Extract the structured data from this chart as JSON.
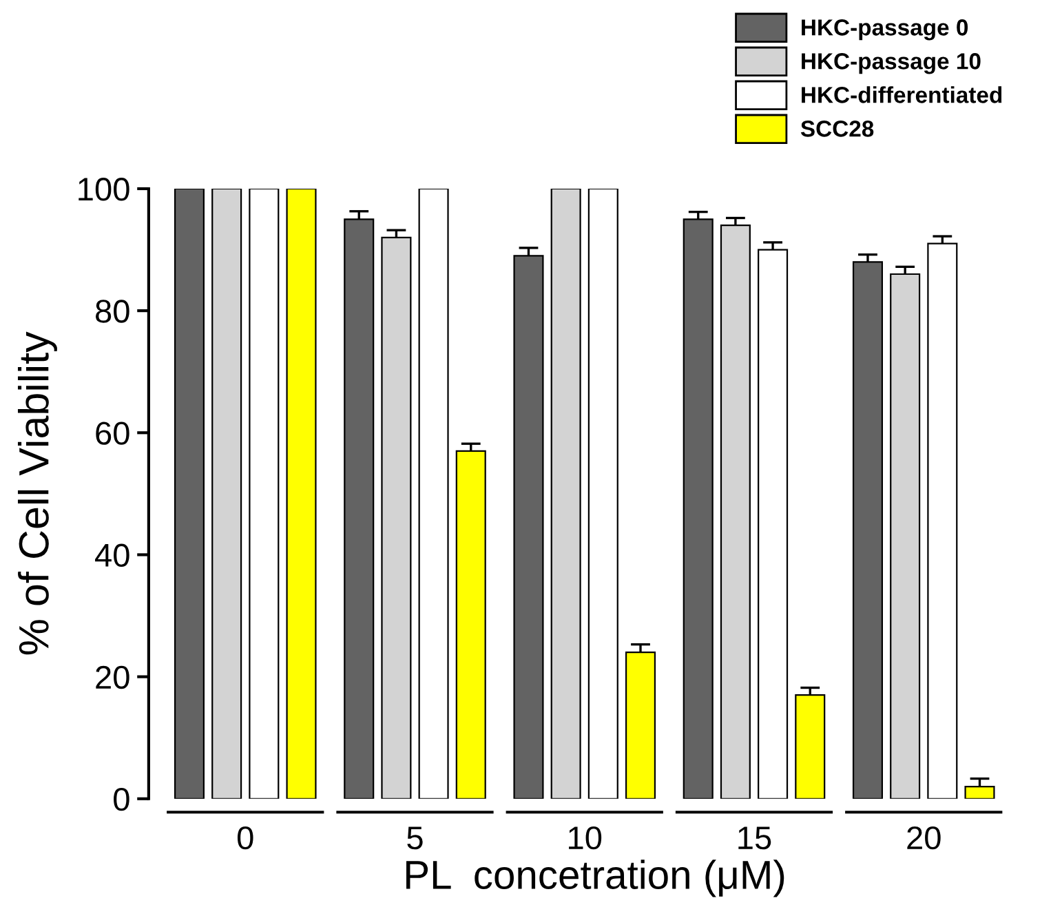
{
  "chart_data": {
    "type": "bar",
    "xlabel": "PL  concetration (μM)",
    "ylabel": "% of Cell Viability",
    "categories": [
      "0",
      "5",
      "10",
      "15",
      "20"
    ],
    "series": [
      {
        "name": "HKC-passage 0",
        "color": "#636363",
        "values": [
          100,
          95,
          89,
          95,
          88
        ],
        "errors": [
          null,
          1.3,
          1.3,
          1.2,
          1.2
        ]
      },
      {
        "name": "HKC-passage 10",
        "color": "#d3d3d3",
        "values": [
          100,
          92,
          100,
          94,
          86
        ],
        "errors": [
          null,
          1.2,
          null,
          1.2,
          1.2
        ]
      },
      {
        "name": "HKC-differentiated",
        "color": "#ffffff",
        "values": [
          100,
          100,
          100,
          90,
          91
        ],
        "errors": [
          null,
          null,
          null,
          1.2,
          1.2
        ]
      },
      {
        "name": "SCC28",
        "color": "#ffff00",
        "values": [
          100,
          57,
          24,
          17,
          2
        ],
        "errors": [
          null,
          1.2,
          1.3,
          1.2,
          1.3
        ]
      }
    ],
    "ylim": [
      0,
      100
    ],
    "yticks": [
      0,
      20,
      40,
      60,
      80,
      100
    ],
    "grid": false,
    "legend": "top right"
  }
}
